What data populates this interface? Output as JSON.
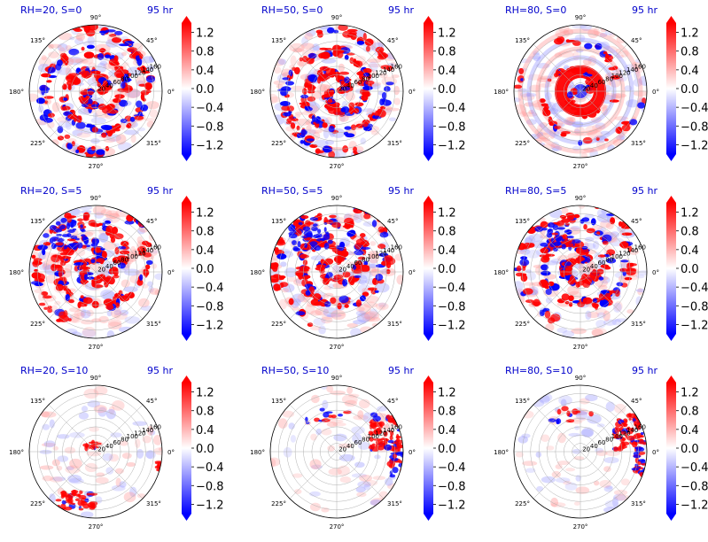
{
  "colors": {
    "negative": "#0000ff",
    "neutral": "#ffffff",
    "positive": "#ff0000",
    "title": "#0000cc",
    "grid": "#b0b0b0"
  },
  "colormap": "bwr",
  "colorbar": {
    "ticks": [
      "1.2",
      "0.8",
      "0.4",
      "0.0",
      "−0.4",
      "−0.8",
      "−1.2"
    ],
    "tick_values": [
      1.2,
      0.8,
      0.4,
      0.0,
      -0.4,
      -0.8,
      -1.2
    ],
    "range": [
      -1.4,
      1.4
    ],
    "extend": "both"
  },
  "polar_axis": {
    "angle_labels": [
      "0°",
      "45°",
      "90°",
      "135°",
      "180°",
      "225°",
      "270°",
      "315°"
    ],
    "radial_labels": [
      "20",
      "40",
      "60",
      "80",
      "100",
      "120",
      "140",
      "160"
    ],
    "rmax": 160
  },
  "chart_data": [
    {
      "type": "heatmap",
      "projection": "polar",
      "title_left": "RH=20, S=0",
      "title_right": "95 hr",
      "pattern": "spiral-strong"
    },
    {
      "type": "heatmap",
      "projection": "polar",
      "title_left": "RH=50, S=0",
      "title_right": "95 hr",
      "pattern": "spiral-strong"
    },
    {
      "type": "heatmap",
      "projection": "polar",
      "title_left": "RH=80, S=0",
      "title_right": "95 hr",
      "pattern": "core-rings"
    },
    {
      "type": "heatmap",
      "projection": "polar",
      "title_left": "RH=20, S=5",
      "title_right": "95 hr",
      "pattern": "spiral-shifted"
    },
    {
      "type": "heatmap",
      "projection": "polar",
      "title_left": "RH=50, S=5",
      "title_right": "95 hr",
      "pattern": "spiral-shifted"
    },
    {
      "type": "heatmap",
      "projection": "polar",
      "title_left": "RH=80, S=5",
      "title_right": "95 hr",
      "pattern": "spiral-shifted"
    },
    {
      "type": "heatmap",
      "projection": "polar",
      "title_left": "RH=20, S=10",
      "title_right": "95 hr",
      "pattern": "sparse-southwest"
    },
    {
      "type": "heatmap",
      "projection": "polar",
      "title_left": "RH=50, S=10",
      "title_right": "95 hr",
      "pattern": "sparse-east"
    },
    {
      "type": "heatmap",
      "projection": "polar",
      "title_left": "RH=80, S=10",
      "title_right": "95 hr",
      "pattern": "sparse-east"
    }
  ]
}
